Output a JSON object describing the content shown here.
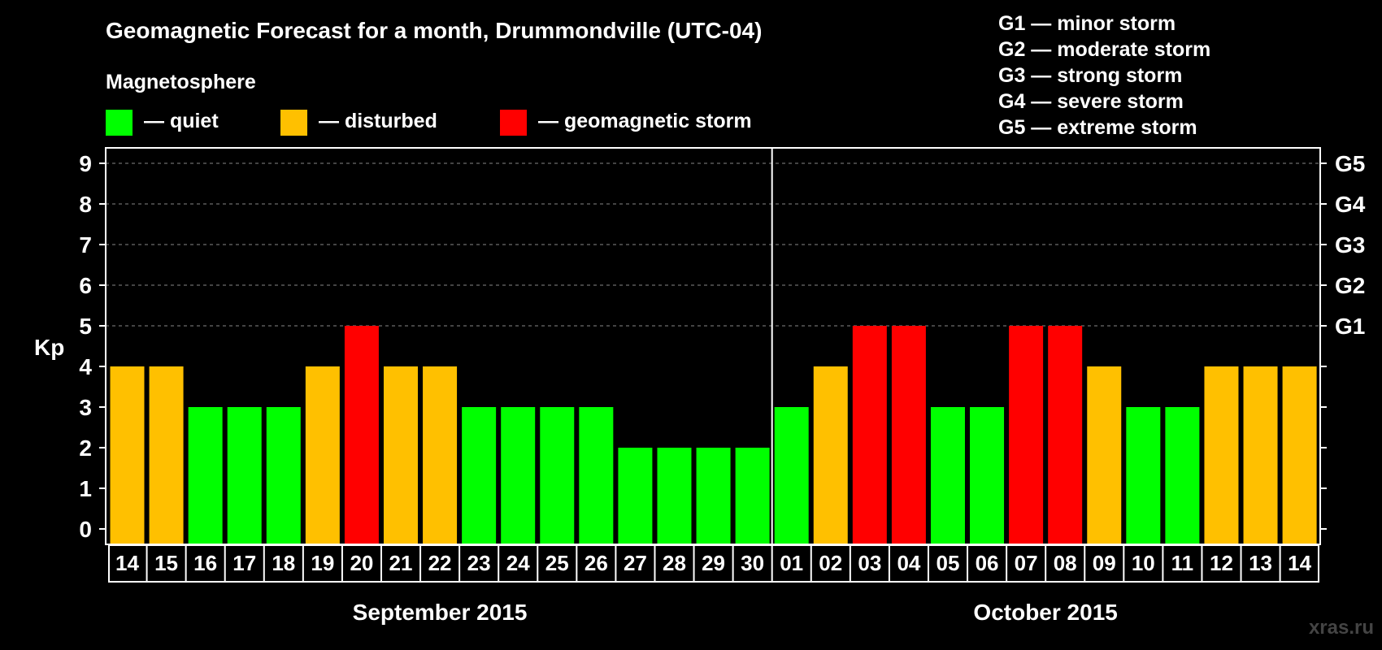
{
  "chart_data": {
    "type": "bar",
    "title": "Geomagnetic Forecast for a month, Drummondville (UTC-04)",
    "ylabel": "Kp",
    "ylim": [
      0,
      9
    ],
    "yticks": [
      "0",
      "1",
      "2",
      "3",
      "4",
      "5",
      "6",
      "7",
      "8",
      "9"
    ],
    "grid": "horizontal dashed",
    "storm_levels": [
      {
        "label": "G1",
        "kp": 5
      },
      {
        "label": "G2",
        "kp": 6
      },
      {
        "label": "G3",
        "kp": 7
      },
      {
        "label": "G4",
        "kp": 8
      },
      {
        "label": "G5",
        "kp": 9
      }
    ],
    "legend": {
      "heading": "Magnetosphere",
      "items": [
        {
          "label": "— quiet",
          "color": "#00ff00"
        },
        {
          "label": "— disturbed",
          "color": "#ffc000"
        },
        {
          "label": "— geomagnetic storm",
          "color": "#ff0000"
        }
      ]
    },
    "storm_legend": [
      "G1 — minor storm",
      "G2 — moderate storm",
      "G3 — strong storm",
      "G4 — severe storm",
      "G5 — extreme storm"
    ],
    "months": [
      {
        "label": "September 2015",
        "days": [
          "14",
          "15",
          "16",
          "17",
          "18",
          "19",
          "20",
          "21",
          "22",
          "23",
          "24",
          "25",
          "26",
          "27",
          "28",
          "29",
          "30"
        ]
      },
      {
        "label": "October 2015",
        "days": [
          "01",
          "02",
          "03",
          "04",
          "05",
          "06",
          "07",
          "08",
          "09",
          "10",
          "11",
          "12",
          "13",
          "14"
        ]
      }
    ],
    "values": [
      4,
      4,
      3,
      3,
      3,
      4,
      5,
      4,
      4,
      3,
      3,
      3,
      3,
      2,
      2,
      2,
      2,
      3,
      4,
      5,
      5,
      3,
      3,
      5,
      5,
      4,
      3,
      3,
      4,
      4,
      4
    ],
    "colors": {
      "quiet": "#00ff00",
      "disturbed": "#ffc000",
      "storm": "#ff0000",
      "background": "#000000",
      "grid": "#888888"
    }
  },
  "watermark": "xras.ru"
}
